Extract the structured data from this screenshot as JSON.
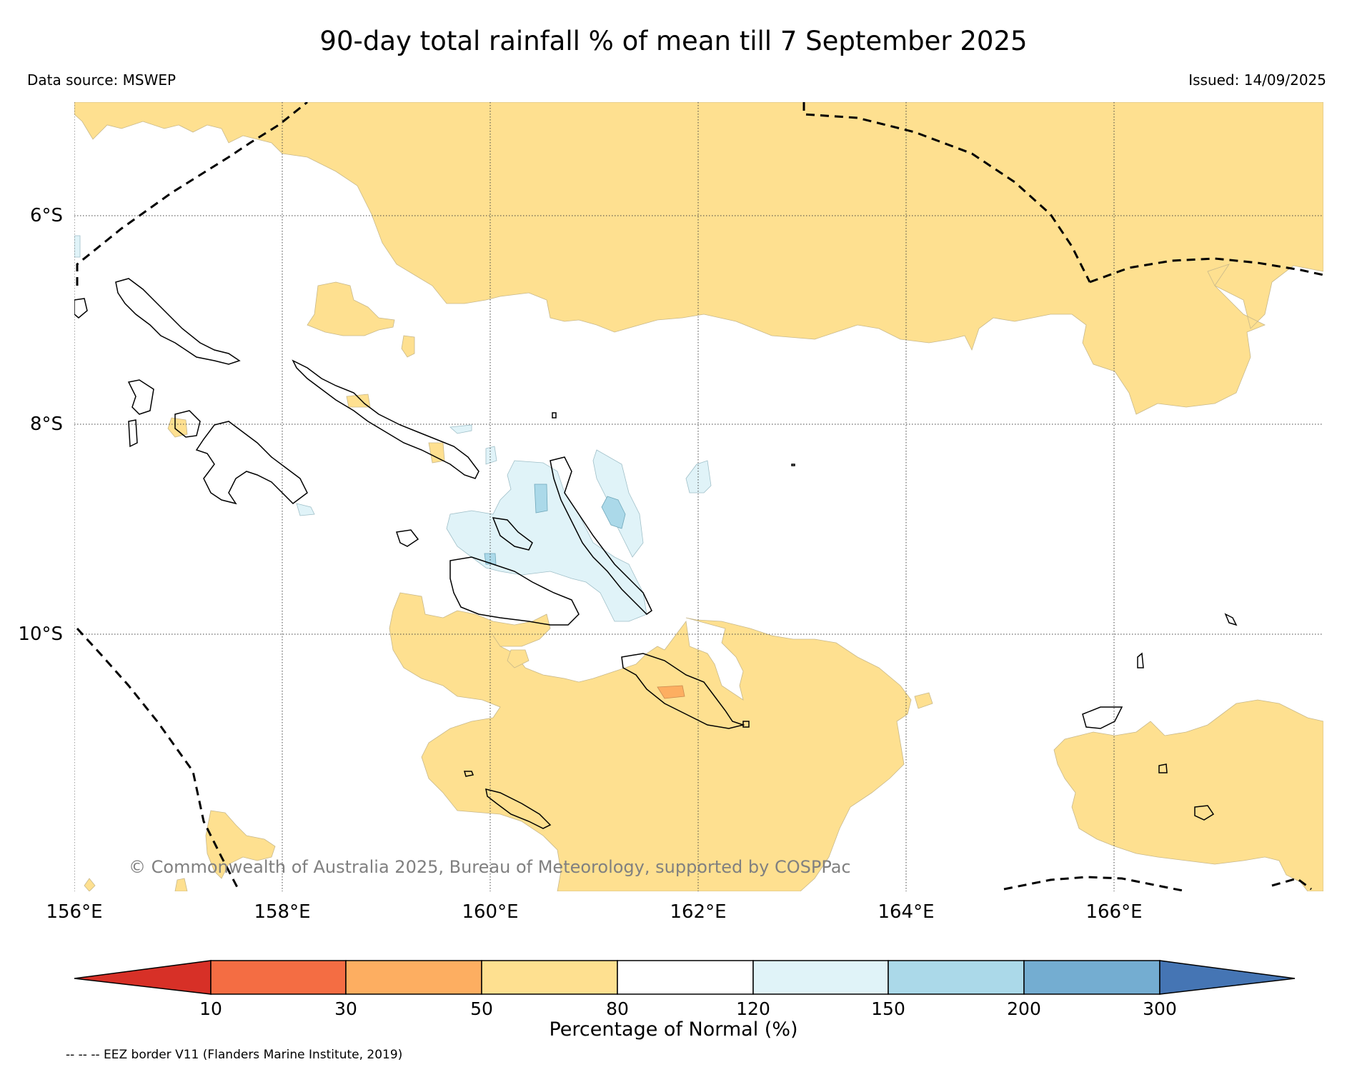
{
  "title": "90-day total rainfall % of mean till 7 September 2025",
  "data_source": "Data source: MSWEP",
  "issued": "Issued: 14/09/2025",
  "copyright": "© Commonwealth of Australia 2025, Bureau of Meteorology, supported by COSPPac",
  "axes": {
    "lat_ticks": [
      "6°S",
      "8°S",
      "10°S"
    ],
    "lon_ticks": [
      "156°E",
      "158°E",
      "160°E",
      "162°E",
      "164°E",
      "166°E"
    ]
  },
  "colorbar": {
    "title": "Percentage of Normal (%)",
    "boundaries": [
      "10",
      "30",
      "50",
      "80",
      "120",
      "150",
      "200",
      "300"
    ],
    "colors": [
      "#d73027",
      "#f46d43",
      "#fdae61",
      "#fee090",
      "#ffffff",
      "#e0f3f8",
      "#abd9e9",
      "#74add1",
      "#4575b4"
    ]
  },
  "legend_note": "-- -- -- EEZ border V11 (Flanders Marine Institute, 2019)"
}
